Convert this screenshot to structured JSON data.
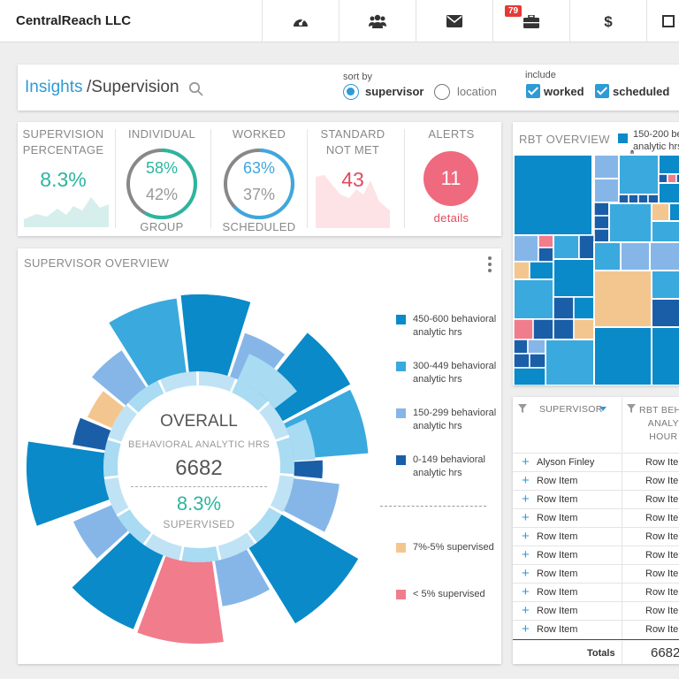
{
  "app": {
    "company": "CentralReach LLC"
  },
  "nav": {
    "briefcase_badge": "79"
  },
  "breadcrumb": {
    "root": "Insights",
    "current": "/Supervision"
  },
  "filters": {
    "sort_label": "sort by",
    "sort_options": [
      "supervisor",
      "location"
    ],
    "sort_selected": "supervisor",
    "include_label": "include",
    "include_options": [
      "worked",
      "scheduled"
    ]
  },
  "kpis": {
    "supervision": {
      "title_line1": "SUPERVISION",
      "title_line2": "PERCENTAGE",
      "value": "8.3%"
    },
    "individual": {
      "title": "INDIVIDUAL",
      "primary": "58%",
      "secondary": "42%",
      "footer": "GROUP",
      "fraction": 0.58
    },
    "worked": {
      "title": "WORKED",
      "primary": "63%",
      "secondary": "37%",
      "footer": "SCHEDULED",
      "fraction": 0.63
    },
    "standard": {
      "title_line1": "STANDARD",
      "title_line2": "NOT MET",
      "value": "43"
    },
    "alerts": {
      "title": "ALERTS",
      "value": "11",
      "link": "details"
    }
  },
  "overview": {
    "title": "SUPERVISOR OVERVIEW",
    "center_title": "OVERALL",
    "center_subtitle": "BEHAVIORAL ANALYTIC HRS",
    "center_value": "6682",
    "center_percent": "8.3%",
    "center_percent_label": "SUPERVISED",
    "legend": [
      {
        "label": "450-600 behavioral analytic hrs",
        "color": "#0a8ac8"
      },
      {
        "label": "300-449 behavioral analytic hrs",
        "color": "#3aa9de"
      },
      {
        "label": "150-299 behavioral analytic hrs",
        "color": "#86b6e8"
      },
      {
        "label": "0-149 behavioral analytic hrs",
        "color": "#1a5ea8"
      },
      {
        "label": "7%-5% supervised",
        "color": "#f4c68f"
      },
      {
        "label": "< 5% supervised",
        "color": "#f07c8c"
      }
    ]
  },
  "rbt": {
    "title": "RBT OVERVIEW",
    "legend_label_line1": "150-200 be",
    "legend_label_line2": "analytic hrs",
    "legend_color": "#0a8ac8"
  },
  "table": {
    "headers": [
      "SUPERVISOR",
      "RBT BEHA",
      "ANALY",
      "HOUR"
    ],
    "rows": [
      {
        "name": "Alyson Finley",
        "value": "Row Ite"
      },
      {
        "name": "Row Item",
        "value": "Row Ite"
      },
      {
        "name": "Row Item",
        "value": "Row Ite"
      },
      {
        "name": "Row Item",
        "value": "Row Ite"
      },
      {
        "name": "Row Item",
        "value": "Row Ite"
      },
      {
        "name": "Row Item",
        "value": "Row Ite"
      },
      {
        "name": "Row Item",
        "value": "Row Ite"
      },
      {
        "name": "Row Item",
        "value": "Row Ite"
      },
      {
        "name": "Row Item",
        "value": "Row Ite"
      },
      {
        "name": "Row Item",
        "value": "Row Ite"
      }
    ],
    "totals_label": "Totals",
    "totals_value": "6682"
  }
}
